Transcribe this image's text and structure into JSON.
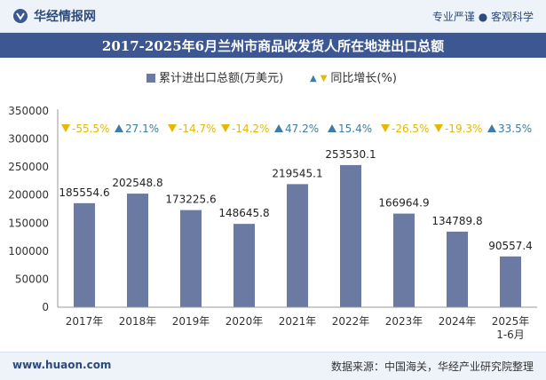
{
  "header": {
    "site_name": "华经情报网",
    "tagline": "专业严谨 ● 客观科学"
  },
  "footer": {
    "url": "www.huaon.com",
    "source": "数据来源：中国海关，华经产业研究院整理"
  },
  "colors": {
    "bar": "#6b7aa3",
    "up": "#3d7ca6",
    "down": "#e6b800",
    "title_bg": "#3c5791"
  },
  "chart_data": {
    "type": "bar",
    "title": "2017-2025年6月兰州市商品收发货人所在地进出口总额",
    "categories": [
      "2017年",
      "2018年",
      "2019年",
      "2020年",
      "2021年",
      "2022年",
      "2023年",
      "2024年",
      "2025年 1-6月"
    ],
    "series": [
      {
        "name": "累计进出口总额(万美元)",
        "values": [
          185554.6,
          202548.8,
          173225.6,
          148645.8,
          219545.1,
          253530.1,
          166964.9,
          134789.8,
          90557.4
        ],
        "labels": [
          "185554.6",
          "202548.8",
          "173225.6",
          "148645.8",
          "219545.1",
          "253530.1",
          "166964.9",
          "134789.8",
          "90557.4"
        ]
      },
      {
        "name": "同比增长(%)",
        "values": [
          -55.5,
          27.1,
          -14.7,
          -14.2,
          47.2,
          15.4,
          -26.5,
          -19.3,
          33.5
        ],
        "labels": [
          "-55.5%",
          "27.1%",
          "-14.7%",
          "-14.2%",
          "47.2%",
          "15.4%",
          "-26.5%",
          "-19.3%",
          "33.5%"
        ]
      }
    ],
    "ylim": [
      0,
      350000
    ],
    "yticks": [
      0,
      50000,
      100000,
      150000,
      200000,
      250000,
      300000,
      350000
    ],
    "ytick_labels": [
      "0",
      "50000",
      "100000",
      "150000",
      "200000",
      "250000",
      "300000",
      "350000"
    ],
    "legend_up_marker": "▲",
    "legend_down_marker": "▼",
    "legend": "top-center",
    "grid": false
  }
}
